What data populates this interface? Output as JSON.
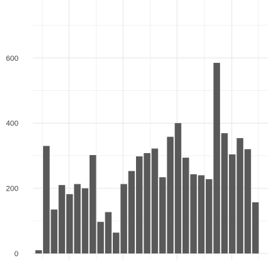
{
  "chart_data": {
    "type": "bar",
    "title": "",
    "xlabel": "",
    "ylabel": "",
    "grid": true,
    "legend": "none",
    "ylim": [
      0,
      780
    ],
    "y_ticks": [
      0,
      200,
      400,
      600
    ],
    "y_tick_labels": [
      "0",
      "200",
      "400",
      "600"
    ],
    "x_tick_labels": [],
    "bar_color": "#595959",
    "values": [
      10,
      330,
      135,
      210,
      182,
      213,
      200,
      302,
      97,
      127,
      64,
      213,
      253,
      298,
      308,
      322,
      234,
      358,
      400,
      294,
      243,
      240,
      228,
      585,
      369,
      304,
      354,
      320,
      157
    ]
  }
}
